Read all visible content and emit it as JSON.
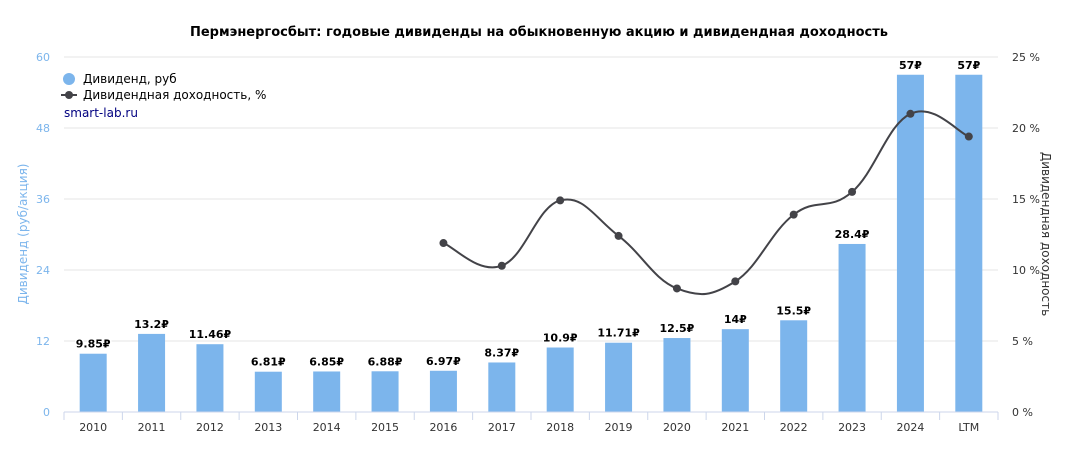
{
  "chart_data": {
    "type": "bar",
    "title": "Пермэнергосбыт: годовые дивиденды на обыкновенную акцию и дивидендная доходность",
    "source_label": "smart-lab.ru",
    "categories": [
      "2010",
      "2011",
      "2012",
      "2013",
      "2014",
      "2015",
      "2016",
      "2017",
      "2018",
      "2019",
      "2020",
      "2021",
      "2022",
      "2023",
      "2024",
      "LTM"
    ],
    "y_left": {
      "label": "Дивиденд (руб/акция)",
      "ticks": [
        "0",
        "12",
        "24",
        "36",
        "48",
        "60"
      ],
      "lim": [
        0,
        60
      ]
    },
    "y_right": {
      "label": "Дивидендная доходность",
      "ticks": [
        "0 %",
        "5 %",
        "10 %",
        "15 %",
        "20 %",
        "25 %"
      ],
      "lim": [
        0,
        25
      ]
    },
    "series": [
      {
        "name": "Дивиденд, руб",
        "type": "bar",
        "axis": "left",
        "color": "#7cb5ec",
        "values": [
          9.85,
          13.2,
          11.46,
          6.81,
          6.85,
          6.88,
          6.97,
          8.37,
          10.9,
          11.71,
          12.5,
          14,
          15.5,
          28.4,
          57,
          57
        ],
        "labels": [
          "9.85₽",
          "13.2₽",
          "11.46₽",
          "6.81₽",
          "6.85₽",
          "6.88₽",
          "6.97₽",
          "8.37₽",
          "10.9₽",
          "11.71₽",
          "12.5₽",
          "14₽",
          "15.5₽",
          "28.4₽",
          "57₽",
          "57₽"
        ]
      },
      {
        "name": "Дивидендная доходность, %",
        "type": "line",
        "axis": "right",
        "color": "#434348",
        "values": [
          null,
          null,
          null,
          null,
          null,
          null,
          11.9,
          10.3,
          14.9,
          12.4,
          8.7,
          9.2,
          13.9,
          15.5,
          21.0,
          19.4
        ]
      }
    ],
    "legend_position": "top-left",
    "grid": true
  }
}
